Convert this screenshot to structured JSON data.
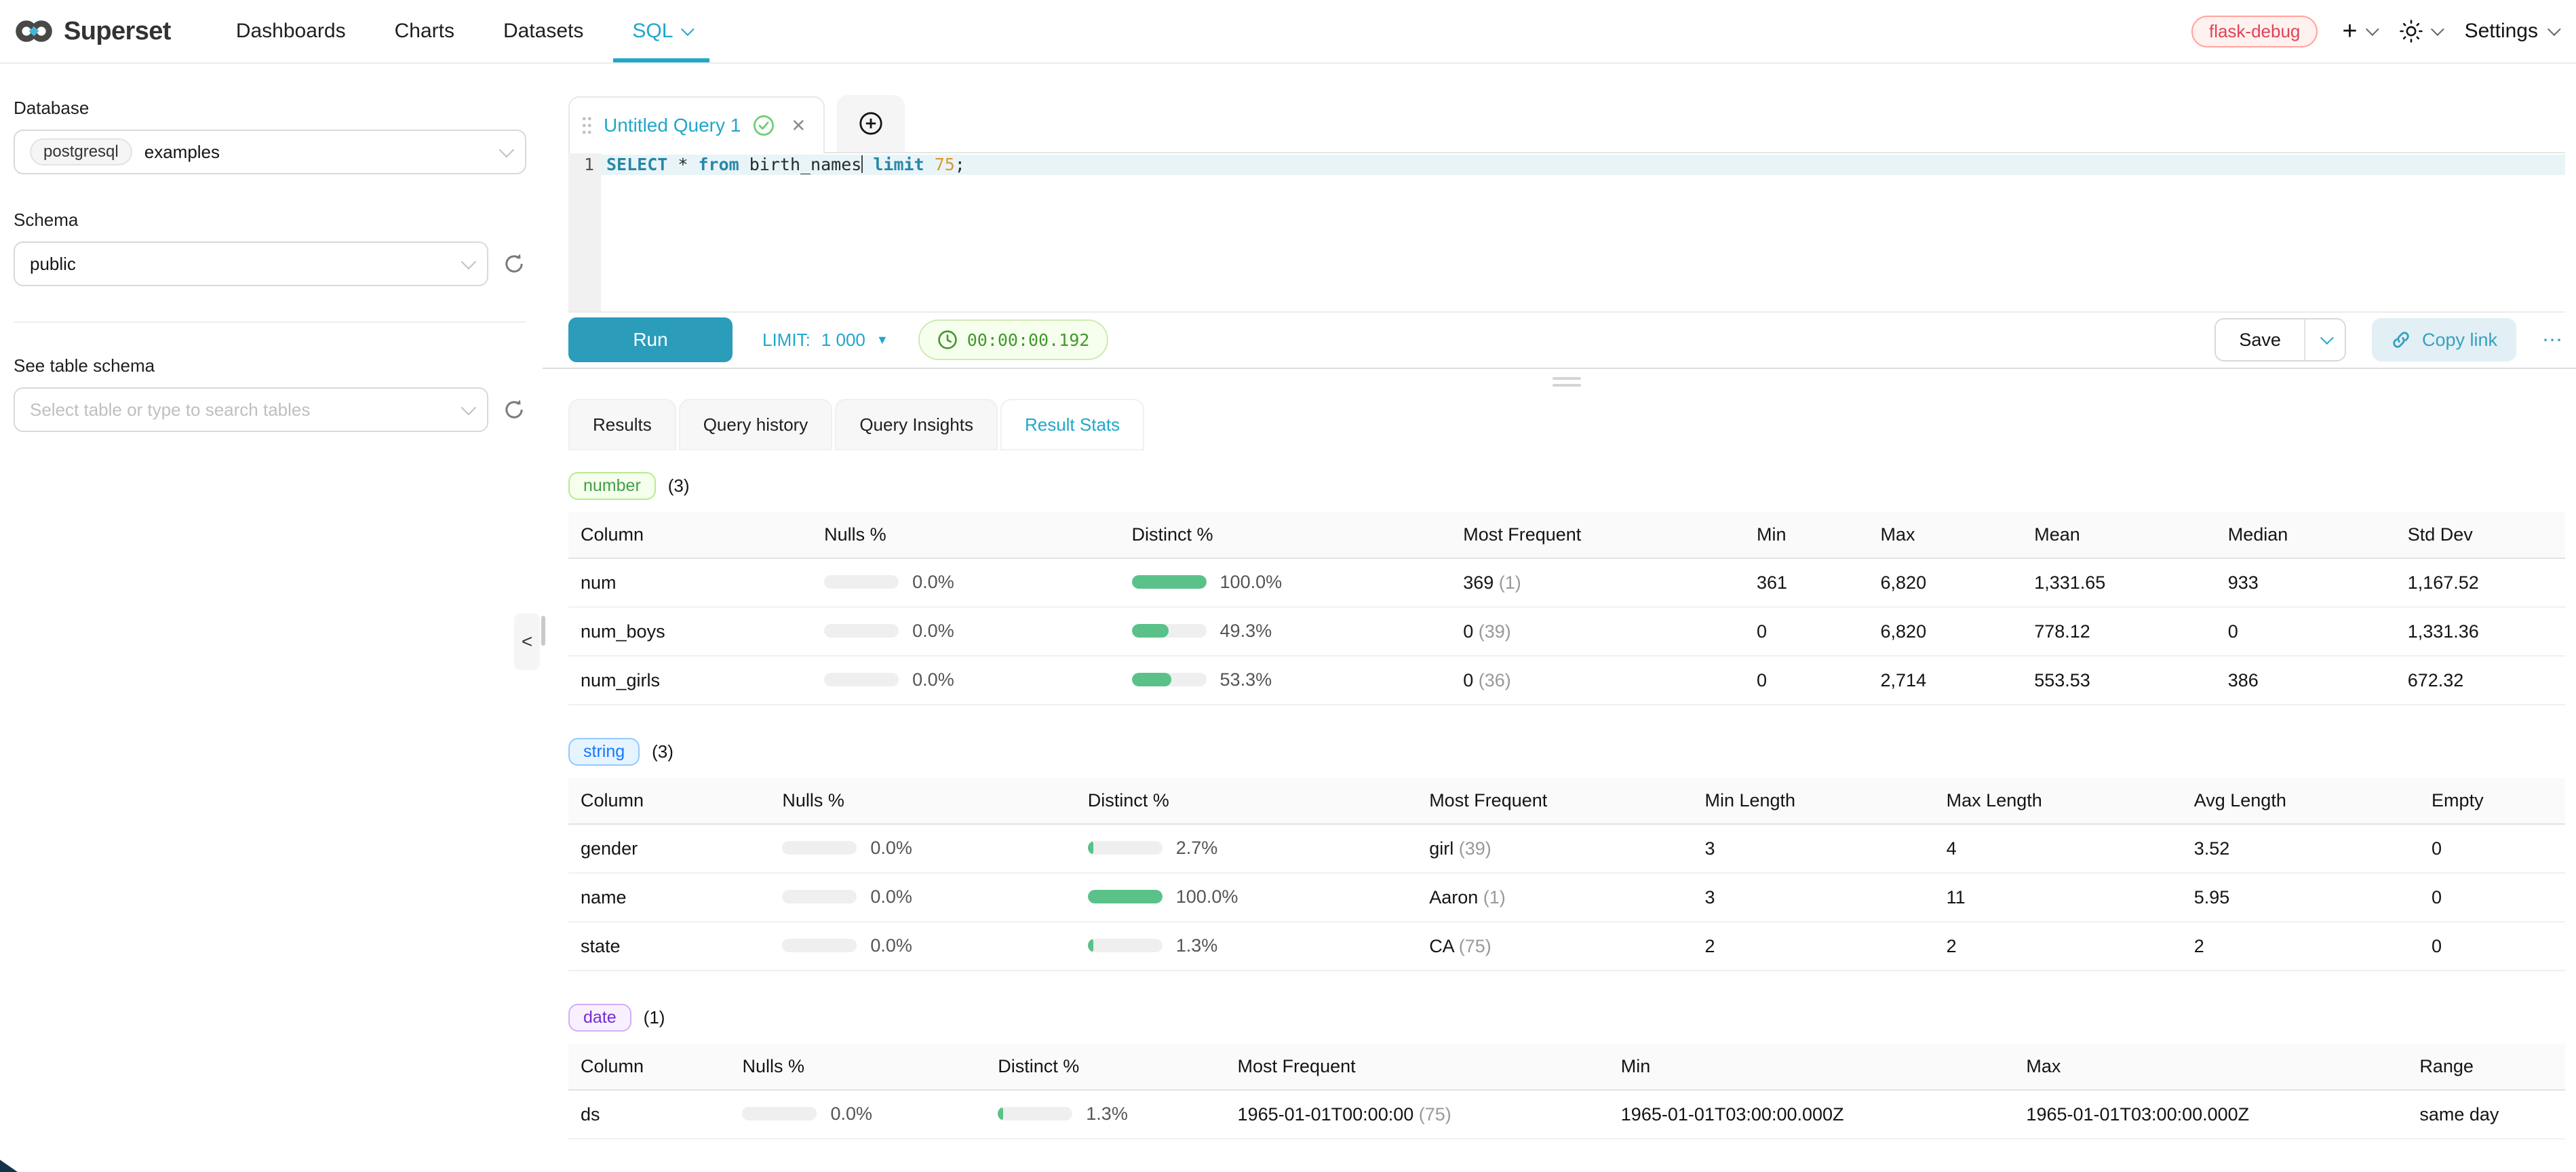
{
  "navbar": {
    "brand": "Superset",
    "items": [
      {
        "label": "Dashboards"
      },
      {
        "label": "Charts"
      },
      {
        "label": "Datasets"
      },
      {
        "label": "SQL"
      }
    ],
    "environment_tag": "flask-debug",
    "settings_label": "Settings"
  },
  "sidebar": {
    "database_label": "Database",
    "database_engine_tag": "postgresql",
    "database_value": "examples",
    "schema_label": "Schema",
    "schema_value": "public",
    "table_label": "See table schema",
    "table_placeholder": "Select table or type to search tables"
  },
  "editor": {
    "tab_title": "Untitled Query 1",
    "line_number": "1",
    "code_tokens": [
      {
        "type": "kw",
        "text": "SELECT"
      },
      {
        "type": "plain",
        "text": " * "
      },
      {
        "type": "kw",
        "text": "from"
      },
      {
        "type": "plain",
        "text": " birth_names"
      },
      {
        "type": "caret",
        "text": ""
      },
      {
        "type": "kw",
        "text": " limit"
      },
      {
        "type": "plain",
        "text": " "
      },
      {
        "type": "num",
        "text": "75"
      },
      {
        "type": "plain",
        "text": ";"
      }
    ],
    "run_label": "Run",
    "limit_label": "LIMIT:",
    "limit_value": "1 000",
    "timer": "00:00:00.192",
    "save_label": "Save",
    "copy_link_label": "Copy link",
    "more_label": "⋯"
  },
  "results": {
    "tabs": [
      {
        "label": "Results"
      },
      {
        "label": "Query history"
      },
      {
        "label": "Query Insights"
      },
      {
        "label": "Result Stats"
      }
    ],
    "active_tab": "Result Stats"
  },
  "colors": {
    "accent_teal": "#20a7c9",
    "bar_green": "#5ac189",
    "env_tag_red": "#e04355"
  },
  "stats": {
    "sections": [
      {
        "tag": "number",
        "count": "(3)",
        "tag_color": "#43a047",
        "tag_bg": "#f6ffed",
        "tag_border": "#b7eb8f",
        "columns": [
          "Column",
          "Nulls %",
          "Distinct %",
          "Most Frequent",
          "Min",
          "Max",
          "Mean",
          "Median",
          "Std Dev"
        ],
        "col_widths": [
          "12.2%",
          "15.4%",
          "16.6%",
          "14.7%",
          "6.2%",
          "7.7%",
          "9.7%",
          "9.0%",
          "8.5%"
        ],
        "rows": [
          [
            {
              "kind": "name",
              "value": "num"
            },
            {
              "kind": "bar",
              "fill": 0,
              "label": "0.0%"
            },
            {
              "kind": "bar",
              "fill": 100,
              "label": "100.0%"
            },
            {
              "kind": "freq",
              "value": "369",
              "count": "(1)"
            },
            {
              "kind": "text",
              "value": "361"
            },
            {
              "kind": "text",
              "value": "6,820"
            },
            {
              "kind": "text",
              "value": "1,331.65"
            },
            {
              "kind": "text",
              "value": "933"
            },
            {
              "kind": "text",
              "value": "1,167.52"
            }
          ],
          [
            {
              "kind": "name",
              "value": "num_boys"
            },
            {
              "kind": "bar",
              "fill": 0,
              "label": "0.0%"
            },
            {
              "kind": "bar",
              "fill": 49.3,
              "label": "49.3%"
            },
            {
              "kind": "freq",
              "value": "0",
              "count": "(39)"
            },
            {
              "kind": "text",
              "value": "0"
            },
            {
              "kind": "text",
              "value": "6,820"
            },
            {
              "kind": "text",
              "value": "778.12"
            },
            {
              "kind": "text",
              "value": "0"
            },
            {
              "kind": "text",
              "value": "1,331.36"
            }
          ],
          [
            {
              "kind": "name",
              "value": "num_girls"
            },
            {
              "kind": "bar",
              "fill": 0,
              "label": "0.0%"
            },
            {
              "kind": "bar",
              "fill": 53.3,
              "label": "53.3%"
            },
            {
              "kind": "freq",
              "value": "0",
              "count": "(36)"
            },
            {
              "kind": "text",
              "value": "0"
            },
            {
              "kind": "text",
              "value": "2,714"
            },
            {
              "kind": "text",
              "value": "553.53"
            },
            {
              "kind": "text",
              "value": "386"
            },
            {
              "kind": "text",
              "value": "672.32"
            }
          ]
        ]
      },
      {
        "tag": "string",
        "count": "(3)",
        "tag_color": "#1677ff",
        "tag_bg": "#e6f4ff",
        "tag_border": "#91caff",
        "columns": [
          "Column",
          "Nulls %",
          "Distinct %",
          "Most Frequent",
          "Min Length",
          "Max Length",
          "Avg Length",
          "Empty"
        ],
        "col_widths": [
          "10.1%",
          "15.3%",
          "17.1%",
          "13.8%",
          "12.1%",
          "12.4%",
          "11.9%",
          "7.3%"
        ],
        "rows": [
          [
            {
              "kind": "name",
              "value": "gender"
            },
            {
              "kind": "bar",
              "fill": 0,
              "label": "0.0%"
            },
            {
              "kind": "bar",
              "fill": 2.7,
              "label": "2.7%"
            },
            {
              "kind": "freq",
              "value": "girl",
              "count": "(39)"
            },
            {
              "kind": "text",
              "value": "3"
            },
            {
              "kind": "text",
              "value": "4"
            },
            {
              "kind": "text",
              "value": "3.52"
            },
            {
              "kind": "text",
              "value": "0"
            }
          ],
          [
            {
              "kind": "name",
              "value": "name"
            },
            {
              "kind": "bar",
              "fill": 0,
              "label": "0.0%"
            },
            {
              "kind": "bar",
              "fill": 100,
              "label": "100.0%"
            },
            {
              "kind": "freq",
              "value": "Aaron",
              "count": "(1)"
            },
            {
              "kind": "text",
              "value": "3"
            },
            {
              "kind": "text",
              "value": "11"
            },
            {
              "kind": "text",
              "value": "5.95"
            },
            {
              "kind": "text",
              "value": "0"
            }
          ],
          [
            {
              "kind": "name",
              "value": "state"
            },
            {
              "kind": "bar",
              "fill": 0,
              "label": "0.0%"
            },
            {
              "kind": "bar",
              "fill": 1.3,
              "label": "1.3%"
            },
            {
              "kind": "freq",
              "value": "CA",
              "count": "(75)"
            },
            {
              "kind": "text",
              "value": "2"
            },
            {
              "kind": "text",
              "value": "2"
            },
            {
              "kind": "text",
              "value": "2"
            },
            {
              "kind": "text",
              "value": "0"
            }
          ]
        ]
      },
      {
        "tag": "date",
        "count": "(1)",
        "tag_color": "#722ed1",
        "tag_bg": "#f9f0ff",
        "tag_border": "#d3adf7",
        "columns": [
          "Column",
          "Nulls %",
          "Distinct %",
          "Most Frequent",
          "Min",
          "Max",
          "Range"
        ],
        "col_widths": [
          "8.1%",
          "12.8%",
          "12.0%",
          "19.2%",
          "20.3%",
          "19.7%",
          "7.9%"
        ],
        "rows": [
          [
            {
              "kind": "name",
              "value": "ds"
            },
            {
              "kind": "bar",
              "fill": 0,
              "label": "0.0%"
            },
            {
              "kind": "bar",
              "fill": 1.3,
              "label": "1.3%"
            },
            {
              "kind": "freq",
              "value": "1965-01-01T00:00:00",
              "count": "(75)"
            },
            {
              "kind": "text",
              "value": "1965-01-01T03:00:00.000Z"
            },
            {
              "kind": "text",
              "value": "1965-01-01T03:00:00.000Z"
            },
            {
              "kind": "text",
              "value": "same day"
            }
          ]
        ]
      }
    ]
  }
}
